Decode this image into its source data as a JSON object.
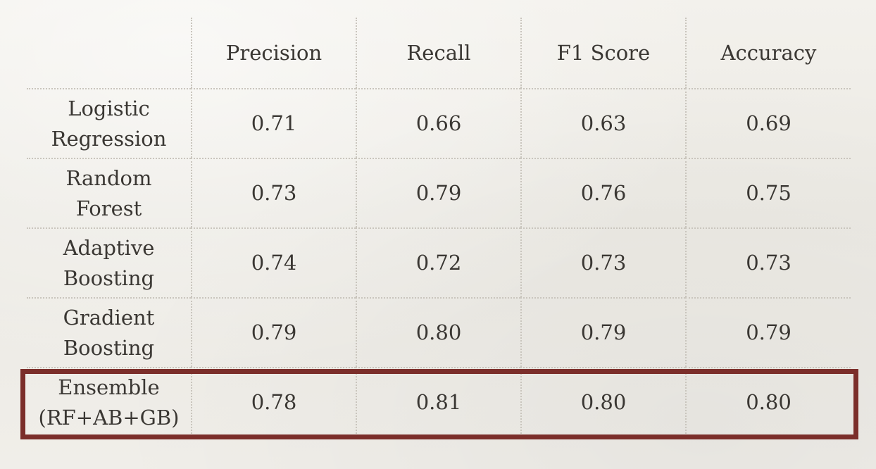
{
  "chart_data": {
    "type": "table",
    "columns": [
      "",
      "Precision",
      "Recall",
      "F1 Score",
      "Accuracy"
    ],
    "rows": [
      {
        "label": "Logistic\nRegression",
        "values": [
          "0.71",
          "0.66",
          "0.63",
          "0.69"
        ]
      },
      {
        "label": "Random Forest",
        "values": [
          "0.73",
          "0.79",
          "0.76",
          "0.75"
        ]
      },
      {
        "label": "Adaptive\nBoosting",
        "values": [
          "0.74",
          "0.72",
          "0.73",
          "0.73"
        ]
      },
      {
        "label": "Gradient\nBoosting",
        "values": [
          "0.79",
          "0.80",
          "0.79",
          "0.79"
        ]
      },
      {
        "label": "Ensemble\n(RF+AB+GB)",
        "values": [
          "0.78",
          "0.81",
          "0.80",
          "0.80"
        ]
      }
    ],
    "highlighted_row": "Ensemble\n(RF+AB+GB)",
    "colors": {
      "highlight_border": "#7b2e2a",
      "text": "#3a3733",
      "gridline": "#c9c5bd",
      "background": "#f1efea"
    }
  }
}
